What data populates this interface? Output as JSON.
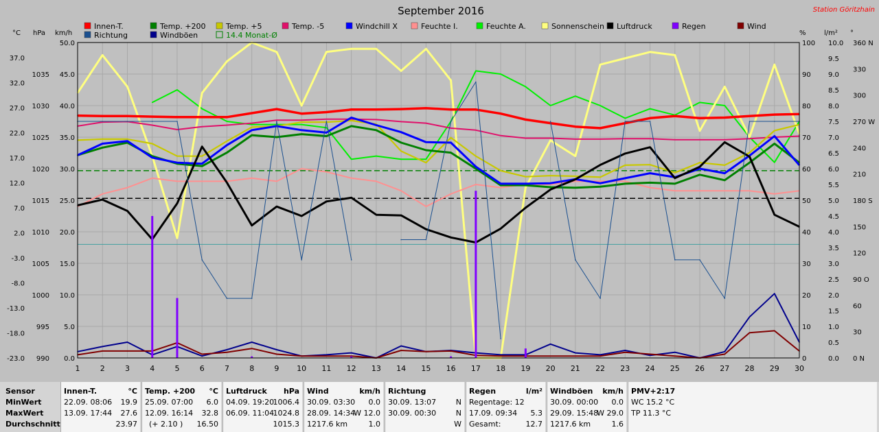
{
  "title": "September 2016",
  "station": "Station Göritzhain",
  "colors": {
    "background": "#c0c0c0",
    "plot": "#c0c0c0",
    "grid": "#a8a8a8",
    "innen": "#ff0000",
    "temp200": "#008000",
    "temp5": "#c8c800",
    "tempm5": "#e0106a",
    "windchill": "#0000ff",
    "feuchte_i": "#ff9090",
    "feuchte_a": "#00f000",
    "sonne": "#ffff80",
    "luftdruck": "#000000",
    "regen": "#8000ff",
    "wind": "#800000",
    "richtung": "#1a4f8f",
    "windboeen": "#00008c",
    "monat": "#008000",
    "station_text": "#ff0000"
  },
  "legend": [
    {
      "label": "Innen-T.",
      "color": "#ff0000"
    },
    {
      "label": "Temp. +200",
      "color": "#008000"
    },
    {
      "label": "Temp. +5",
      "color": "#c8c800"
    },
    {
      "label": "Temp. -5",
      "color": "#e0106a"
    },
    {
      "label": "Windchill X",
      "color": "#0000ff"
    },
    {
      "label": "Feuchte I.",
      "color": "#ff9090"
    },
    {
      "label": "Feuchte A.",
      "color": "#00f000"
    },
    {
      "label": "Sonnenschein",
      "color": "#ffff80"
    },
    {
      "label": "Luftdruck",
      "color": "#000000"
    },
    {
      "label": "Regen",
      "color": "#8000ff"
    },
    {
      "label": "Wind",
      "color": "#800000"
    },
    {
      "label": "Richtung",
      "color": "#1a4f8f"
    },
    {
      "label": "Windböen",
      "color": "#00008c"
    },
    {
      "label": "14.4 Monat-Ø",
      "color": "#008000",
      "outline": true
    }
  ],
  "axis_units": {
    "celsius": "°C",
    "hpa": "hPa",
    "kmh": "km/h",
    "percent": "%",
    "lm2": "l/m²",
    "deg": "°"
  },
  "axes": {
    "celsius": [
      "37.0",
      "32.0",
      "27.0",
      "22.0",
      "17.0",
      "12.0",
      "7.0",
      "2.0",
      "-3.0",
      "-8.0",
      "-13.0",
      "-18.0",
      "-23.0"
    ],
    "hpa": [
      "1035",
      "1030",
      "1025",
      "1020",
      "1015",
      "1010",
      "1005",
      "1000",
      "995",
      "990"
    ],
    "kmh": [
      "50.0",
      "45.0",
      "40.0",
      "35.0",
      "30.0",
      "25.0",
      "20.0",
      "15.0",
      "10.0",
      "5.0",
      "0.0"
    ],
    "percent": [
      "100",
      "90",
      "80",
      "70",
      "60",
      "50",
      "40",
      "30",
      "20",
      "10",
      "0"
    ],
    "lm2": [
      "10.0",
      "9.5",
      "9.0",
      "8.5",
      "8.0",
      "7.5",
      "7.0",
      "6.5",
      "6.0",
      "5.5",
      "5.0",
      "4.5",
      "4.0",
      "3.5",
      "3.0",
      "2.5",
      "2.0",
      "1.5",
      "1.0",
      "0.5",
      "0.0"
    ],
    "direction": [
      "360 N",
      "330",
      "300",
      "270 W",
      "240",
      "210",
      "180 S",
      "150",
      "120",
      "90 O",
      "60",
      "30",
      "0 N"
    ],
    "days": [
      "1",
      "2",
      "3",
      "4",
      "5",
      "6",
      "7",
      "8",
      "9",
      "10",
      "11",
      "12",
      "13",
      "14",
      "15",
      "16",
      "17",
      "18",
      "19",
      "20",
      "21",
      "22",
      "23",
      "24",
      "25",
      "26",
      "27",
      "28",
      "29",
      "30"
    ]
  },
  "chart_data": {
    "type": "line",
    "title": "September 2016",
    "x": [
      1,
      2,
      3,
      4,
      5,
      6,
      7,
      8,
      9,
      10,
      11,
      12,
      13,
      14,
      15,
      16,
      17,
      18,
      19,
      20,
      21,
      22,
      23,
      24,
      25,
      26,
      27,
      28,
      29,
      30
    ],
    "ylim_celsius": [
      -23,
      40
    ],
    "ylim_hpa": [
      990,
      1040
    ],
    "ylim_kmh": [
      0,
      50
    ],
    "ylim_percent": [
      0,
      100
    ],
    "ylim_lm2": [
      0,
      10
    ],
    "ylim_deg": [
      0,
      360
    ],
    "grid": true,
    "legend_position": "top",
    "series": [
      {
        "name": "Feuchte A.",
        "key": "feuchte_a",
        "axis": "percent",
        "values": [
          null,
          null,
          null,
          81,
          85,
          79,
          75,
          74,
          74,
          74,
          73,
          63,
          64,
          63,
          63,
          75,
          91,
          90,
          86,
          80,
          83,
          80,
          76,
          79,
          77,
          81,
          80,
          70,
          62,
          75
        ]
      },
      {
        "name": "Sonnenschein",
        "key": "sonne",
        "axis": "percent",
        "values": [
          84,
          96,
          86,
          64,
          38,
          84,
          94,
          100,
          97,
          80,
          97,
          98,
          98,
          91,
          98,
          88,
          0,
          0,
          54,
          69,
          64,
          93,
          95,
          97,
          96,
          72,
          86,
          70,
          93,
          71
        ]
      },
      {
        "name": "Feuchte I.",
        "key": "feuchte_i",
        "axis": "percent",
        "values": [
          48,
          52,
          54,
          57,
          56,
          56,
          56,
          57,
          56,
          60,
          59,
          57,
          56,
          53,
          48,
          52,
          55,
          54,
          55,
          55,
          56,
          56,
          56,
          54,
          53,
          53,
          53,
          53,
          52,
          53
        ]
      },
      {
        "name": "Temp. -5",
        "key": "tempm5",
        "axis": "celsius",
        "values": [
          23.3,
          24.1,
          24.2,
          23.5,
          22.6,
          23.2,
          23.5,
          23.9,
          24.5,
          24.5,
          24.7,
          24.7,
          24.6,
          24.2,
          23.9,
          22.9,
          22.5,
          21.4,
          20.9,
          20.9,
          20.7,
          20.7,
          20.8,
          20.8,
          20.6,
          20.6,
          20.6,
          20.8,
          21.1,
          21.3
        ]
      },
      {
        "name": "Temp. +5",
        "key": "temp5",
        "axis": "celsius",
        "values": [
          20.5,
          20.7,
          20.7,
          19.8,
          17.3,
          17.3,
          20.3,
          23.1,
          23.3,
          24.1,
          24.1,
          24.4,
          23.7,
          18.3,
          16.0,
          21.0,
          17.3,
          14.4,
          13.2,
          13.4,
          13.3,
          13.1,
          15.5,
          15.6,
          14.0,
          16.0,
          15.5,
          18.0,
          22.4,
          23.6
        ]
      },
      {
        "name": "Temp. +200",
        "key": "temp200",
        "axis": "celsius",
        "values": [
          17.5,
          19.0,
          20.0,
          17.3,
          15.8,
          15.3,
          18.0,
          21.5,
          21.1,
          21.7,
          21.3,
          23.3,
          22.5,
          20.0,
          18.5,
          18.0,
          14.8,
          11.5,
          11.5,
          11.1,
          11.0,
          11.2,
          11.8,
          12.0,
          11.8,
          13.6,
          12.5,
          16.0,
          19.8,
          16.0
        ]
      },
      {
        "name": "Windchill X",
        "key": "windchill",
        "axis": "celsius",
        "values": [
          17.5,
          19.8,
          20.3,
          17.0,
          16.0,
          15.8,
          19.5,
          22.5,
          23.3,
          22.5,
          22.0,
          25.0,
          23.5,
          22.1,
          20.1,
          20.0,
          15.2,
          11.8,
          11.8,
          11.9,
          12.7,
          11.9,
          12.9,
          13.9,
          13.1,
          14.8,
          13.9,
          17.4,
          21.3,
          15.5
        ]
      },
      {
        "name": "Innen-T.",
        "key": "innen",
        "axis": "celsius",
        "values": [
          25.4,
          25.3,
          25.3,
          25.2,
          25.1,
          25.1,
          25.1,
          25.9,
          26.7,
          25.8,
          26.1,
          26.6,
          26.6,
          26.7,
          26.9,
          26.6,
          26.6,
          25.8,
          24.6,
          23.9,
          23.2,
          22.9,
          23.9,
          24.9,
          25.3,
          24.9,
          25.0,
          25.3,
          25.6,
          25.7
        ]
      },
      {
        "name": "Luftdruck",
        "key": "luftdruck",
        "axis": "hpa",
        "values": [
          1014.2,
          1015.1,
          1013.3,
          1008.8,
          1014.5,
          1023.5,
          1017.8,
          1011.0,
          1014.0,
          1012.5,
          1014.8,
          1015.4,
          1012.7,
          1012.6,
          1010.4,
          1009.1,
          1008.3,
          1010.5,
          1013.8,
          1016.7,
          1018.3,
          1020.6,
          1022.4,
          1023.4,
          1018.5,
          1020.3,
          1024.2,
          1021.9,
          1012.7,
          1010.8
        ]
      },
      {
        "name": "Richtung",
        "key": "richtung",
        "axis": "deg",
        "values": [
          270,
          270,
          270,
          270,
          270,
          112,
          68,
          68,
          270,
          112,
          270,
          112,
          null,
          135,
          135,
          270,
          315,
          22,
          null,
          270,
          112,
          68,
          270,
          270,
          112,
          112,
          68,
          270,
          270,
          270
        ]
      },
      {
        "name": "Windböen",
        "key": "windboeen",
        "axis": "kmh",
        "values": [
          1.0,
          1.8,
          2.5,
          0.5,
          1.8,
          0.3,
          1.3,
          2.5,
          1.3,
          0.3,
          0.5,
          0.8,
          0.0,
          1.9,
          1.0,
          1.2,
          0.8,
          0.5,
          0.5,
          2.2,
          0.8,
          0.5,
          1.2,
          0.4,
          0.9,
          0.0,
          1.0,
          6.5,
          10.2,
          2.5
        ]
      },
      {
        "name": "Wind",
        "key": "wind",
        "axis": "kmh",
        "values": [
          0.5,
          1.1,
          1.1,
          1.1,
          2.4,
          0.6,
          0.9,
          1.5,
          0.6,
          0.3,
          0.3,
          0.3,
          0.0,
          1.2,
          1.0,
          1.1,
          0.4,
          0.3,
          0.3,
          0.3,
          0.3,
          0.3,
          0.9,
          0.6,
          0.3,
          0.0,
          0.6,
          4.0,
          4.3,
          1.1
        ]
      }
    ],
    "regen": [
      {
        "day": 4,
        "lm2": 4.5
      },
      {
        "day": 5,
        "lm2": 1.9
      },
      {
        "day": 8,
        "lm2": 0.05
      },
      {
        "day": 12,
        "lm2": 0.05
      },
      {
        "day": 16,
        "lm2": 0.05
      },
      {
        "day": 17,
        "lm2": 5.3
      },
      {
        "day": 19,
        "lm2": 0.3
      }
    ],
    "reference_lines": [
      {
        "name": "Monat-Ø Temp",
        "axis": "celsius",
        "value": 14.4,
        "style": "dashed",
        "color": "#008000"
      },
      {
        "name": "Luftdruck Ø",
        "axis": "hpa",
        "value": 1015.3,
        "style": "dashed",
        "color": "#000000"
      },
      {
        "name": "Feuchte ref",
        "axis": "percent",
        "value": 36,
        "style": "solid",
        "color": "#40a0a0"
      }
    ]
  },
  "stats": {
    "sensor": {
      "title": "Sensor",
      "min": "MinWert",
      "max": "MaxWert",
      "avg": "Durchschnitt"
    },
    "innen": {
      "title": "Innen-T.",
      "unit": "°C",
      "min_date": "22.09.  08:06",
      "min_val": "19.9",
      "max_date": "13.09.  17:44",
      "max_val": "27.6",
      "avg_val": "23.97"
    },
    "temp200": {
      "title": "Temp. +200",
      "unit": "°C",
      "min_date": "25.09.  07:00",
      "min_val": "6.0",
      "max_date": "12.09.  16:14",
      "max_val": "32.8",
      "avg_date": "(+ 2.10 )",
      "avg_val": "16.50"
    },
    "luftdruck": {
      "title": "Luftdruck",
      "unit": "hPa",
      "min_date": "04.09.  19:20",
      "min_val": "1006.4",
      "max_date": "06.09.  11:04",
      "max_val": "1024.8",
      "avg_val": "1015.3"
    },
    "wind": {
      "title": "Wind",
      "unit": "km/h",
      "min_date": "30.09.  03:30",
      "min_val": "0.0",
      "max_date": "28.09.  14:34",
      "max_val": "W 12.0",
      "avg_date": "1217.6 km",
      "avg_val": "1.0"
    },
    "richtung": {
      "title": "Richtung",
      "min_date": "30.09.  13:07",
      "min_val": "N",
      "max_date": "30.09.  00:30",
      "max_val": "N",
      "avg_val": "W"
    },
    "regen": {
      "title": "Regen",
      "unit": "l/m²",
      "min_date": "Regentage: 12",
      "max_date": "17.09.  09:34",
      "max_val": "5.3",
      "avg_date": "Gesamt:",
      "avg_val": "12.7"
    },
    "windboeen": {
      "title": "Windböen",
      "unit": "km/h",
      "min_date": "30.09.  00:00",
      "min_val": "0.0",
      "max_date": "29.09.  15:48",
      "max_val": "W 29.0",
      "avg_date": "1217.6 km",
      "avg_val": "1.6"
    },
    "pmv": {
      "title": "PMV+2:17",
      "line1": "WC 15.2 °C",
      "line2": "TP 11.3 °C"
    }
  }
}
